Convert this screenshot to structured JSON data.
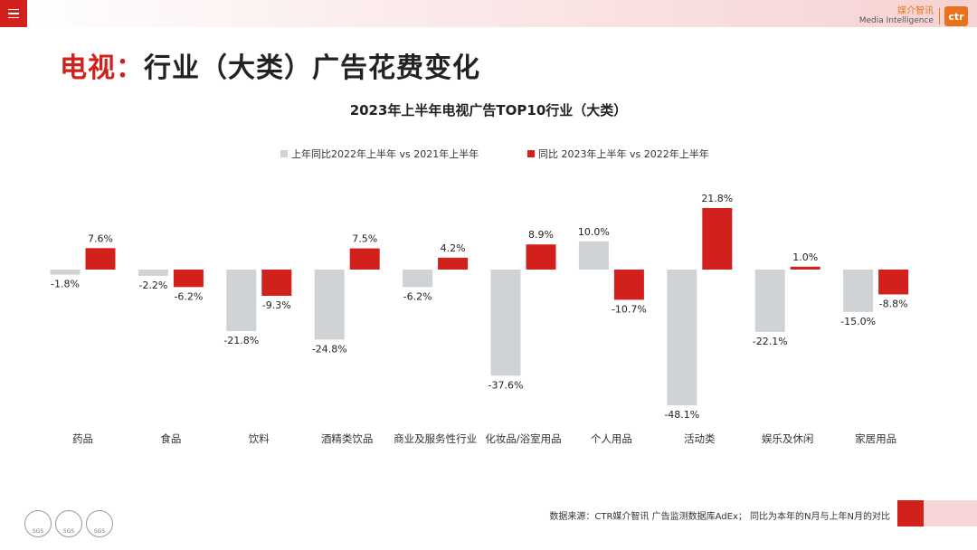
{
  "header": {
    "brand_cn": "媒介智讯",
    "brand_en": "Media Intelligence",
    "logo_text": "ctr"
  },
  "page_title": {
    "highlight": "电视：",
    "rest": "行业（大类）广告花费变化"
  },
  "footer": {
    "source": "数据来源：CTR媒介智讯 广告监测数据库AdEx；  同比为本年的N月与上年N月的对比",
    "badges": [
      "SGS",
      "SGS",
      "SGS"
    ]
  },
  "chart_data": {
    "type": "bar",
    "title": "2023年上半年电视广告TOP10行业（大类）",
    "categories": [
      "药品",
      "食品",
      "饮料",
      "酒精类饮品",
      "商业及服务性行业",
      "化妆品/浴室用品",
      "个人用品",
      "活动类",
      "娱乐及休闲",
      "家居用品"
    ],
    "series": [
      {
        "name": "上年同比2022年上半年  vs 2021年上半年",
        "color": "#d0d3d6",
        "values": [
          -1.8,
          -2.2,
          -21.8,
          -24.8,
          -6.2,
          -37.6,
          10.0,
          -48.1,
          -22.1,
          -15.0
        ]
      },
      {
        "name": "同比 2023年上半年  vs 2022年上半年",
        "color": "#d2201c",
        "values": [
          7.6,
          -6.2,
          -9.3,
          7.5,
          4.2,
          8.9,
          -10.7,
          21.8,
          1.0,
          -8.8
        ]
      }
    ],
    "value_format": "percent_1dp",
    "legend_position": "top",
    "grid": false
  }
}
